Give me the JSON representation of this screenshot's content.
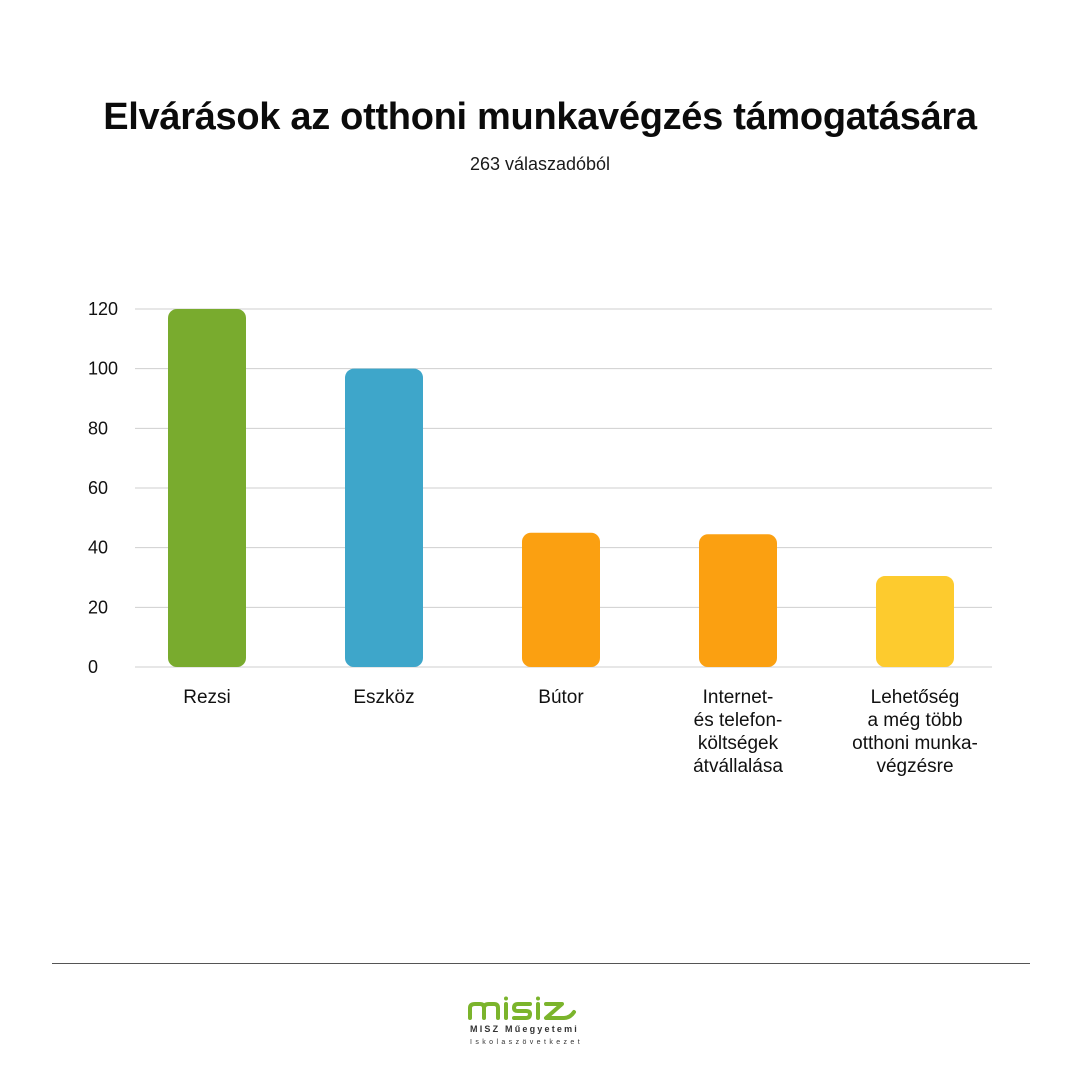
{
  "chart_data": {
    "type": "bar",
    "title": "Elvárások az otthoni munkavégzés támogatására",
    "subtitle": "263 válaszadóból",
    "categories": [
      "Rezsi",
      "Eszköz",
      "Bútor",
      "Internet-\nés telefon-\nköltségek\nátvállalása",
      "Lehetőség\na még több\notthoni munka-\nvégzésre"
    ],
    "values": [
      120,
      100,
      45,
      44.5,
      30.5
    ],
    "colors": [
      "#79ab2e",
      "#3ea6ca",
      "#fba011",
      "#fba011",
      "#fdcb2e"
    ],
    "ylim": [
      0,
      120
    ],
    "yticks": [
      0,
      20,
      40,
      60,
      80,
      100,
      120
    ],
    "grid": true,
    "legend": "none"
  },
  "footer": {
    "logo_name": "misz-logo",
    "logo_text": "misz",
    "logo_line1": "MISZ Műegyetemi",
    "logo_line2": "Iskolaszövetkezet"
  }
}
